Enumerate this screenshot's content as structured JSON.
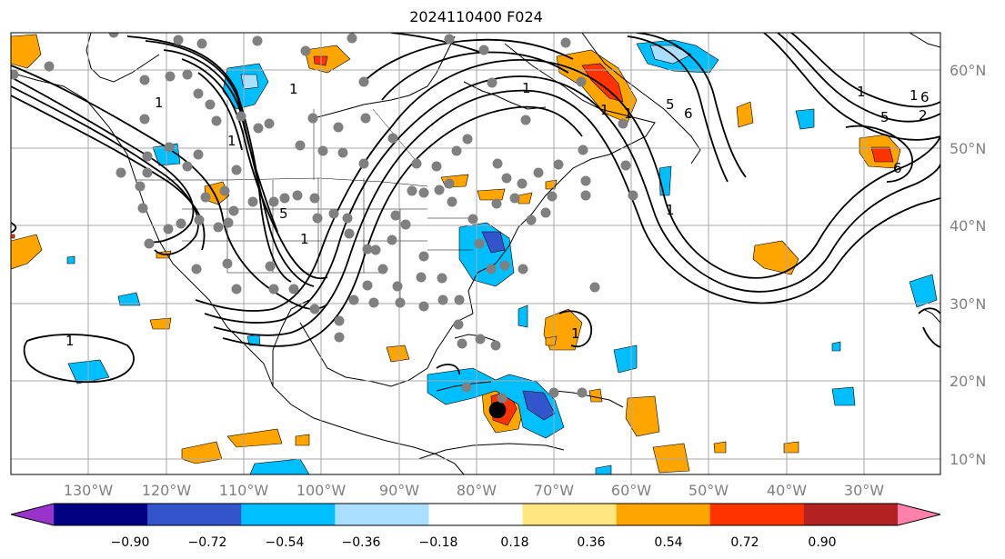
{
  "title": "2024110400 F024",
  "lon_labels": [
    "130°W",
    "120°W",
    "110°W",
    "100°W",
    "90°W",
    "80°W",
    "70°W",
    "60°W",
    "50°W",
    "40°W",
    "30°W"
  ],
  "lat_labels": [
    "60°N",
    "50°N",
    "40°N",
    "30°N",
    "20°N",
    "10°N"
  ],
  "contour_labels": [
    "1",
    "1",
    "1",
    "5",
    "1",
    "1",
    "1",
    "1",
    "5",
    "6",
    "1",
    "6",
    "5",
    "1",
    "2",
    "6",
    "1",
    "1",
    "1"
  ],
  "colorbar": {
    "tick_labels": [
      "−0.90",
      "−0.72",
      "−0.54",
      "−0.36",
      "−0.18",
      "0.18",
      "0.36",
      "0.54",
      "0.72",
      "0.90"
    ],
    "colors": [
      "#9933cc",
      "#000080",
      "#3355cc",
      "#00bfff",
      "#aadfff",
      "#ffffff",
      "#ffe680",
      "#ffa500",
      "#ff3300",
      "#b22222",
      "#ff80aa"
    ],
    "extend": "both"
  },
  "colors": {
    "grid": "#a9a9a9",
    "axis_text": "#808080",
    "station": "#808080",
    "contour": "#000000"
  }
}
